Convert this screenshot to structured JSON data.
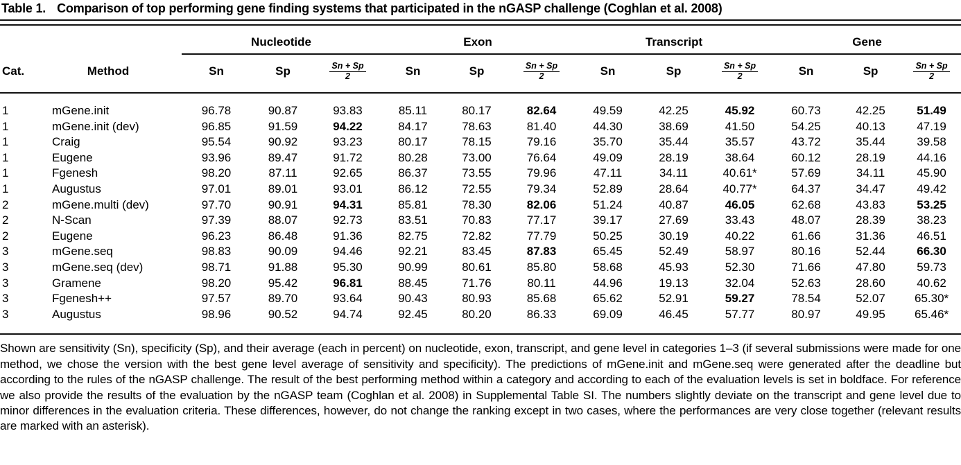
{
  "title": {
    "label": "Table 1.",
    "text": "Comparison of top performing gene finding systems that participated in the nGASP challenge (Coghlan et al. 2008)"
  },
  "table": {
    "col_cat": "Cat.",
    "col_method": "Method",
    "groups": [
      "Nucleotide",
      "Exon",
      "Transcript",
      "Gene"
    ],
    "sub_sn": "Sn",
    "sub_sp": "Sp",
    "frac_numerator": "Sn + Sp",
    "frac_denominator": "2",
    "rows": [
      {
        "cat": "1",
        "method": "mGene.init",
        "values": [
          "96.78",
          "90.87",
          "93.83",
          "85.11",
          "80.17",
          "82.64",
          "49.59",
          "42.25",
          "45.92",
          "60.73",
          "42.25",
          "51.49"
        ],
        "bold": [
          5,
          8,
          11
        ]
      },
      {
        "cat": "1",
        "method": "mGene.init (dev)",
        "values": [
          "96.85",
          "91.59",
          "94.22",
          "84.17",
          "78.63",
          "81.40",
          "44.30",
          "38.69",
          "41.50",
          "54.25",
          "40.13",
          "47.19"
        ],
        "bold": [
          2
        ]
      },
      {
        "cat": "1",
        "method": "Craig",
        "values": [
          "95.54",
          "90.92",
          "93.23",
          "80.17",
          "78.15",
          "79.16",
          "35.70",
          "35.44",
          "35.57",
          "43.72",
          "35.44",
          "39.58"
        ],
        "bold": []
      },
      {
        "cat": "1",
        "method": "Eugene",
        "values": [
          "93.96",
          "89.47",
          "91.72",
          "80.28",
          "73.00",
          "76.64",
          "49.09",
          "28.19",
          "38.64",
          "60.12",
          "28.19",
          "44.16"
        ],
        "bold": []
      },
      {
        "cat": "1",
        "method": "Fgenesh",
        "values": [
          "98.20",
          "87.11",
          "92.65",
          "86.37",
          "73.55",
          "79.96",
          "47.11",
          "34.11",
          "40.61*",
          "57.69",
          "34.11",
          "45.90"
        ],
        "bold": []
      },
      {
        "cat": "1",
        "method": "Augustus",
        "values": [
          "97.01",
          "89.01",
          "93.01",
          "86.12",
          "72.55",
          "79.34",
          "52.89",
          "28.64",
          "40.77*",
          "64.37",
          "34.47",
          "49.42"
        ],
        "bold": []
      },
      {
        "cat": "2",
        "method": "mGene.multi (dev)",
        "values": [
          "97.70",
          "90.91",
          "94.31",
          "85.81",
          "78.30",
          "82.06",
          "51.24",
          "40.87",
          "46.05",
          "62.68",
          "43.83",
          "53.25"
        ],
        "bold": [
          2,
          5,
          8,
          11
        ]
      },
      {
        "cat": "2",
        "method": "N-Scan",
        "values": [
          "97.39",
          "88.07",
          "92.73",
          "83.51",
          "70.83",
          "77.17",
          "39.17",
          "27.69",
          "33.43",
          "48.07",
          "28.39",
          "38.23"
        ],
        "bold": []
      },
      {
        "cat": "2",
        "method": "Eugene",
        "values": [
          "96.23",
          "86.48",
          "91.36",
          "82.75",
          "72.82",
          "77.79",
          "50.25",
          "30.19",
          "40.22",
          "61.66",
          "31.36",
          "46.51"
        ],
        "bold": []
      },
      {
        "cat": "3",
        "method": "mGene.seq",
        "values": [
          "98.83",
          "90.09",
          "94.46",
          "92.21",
          "83.45",
          "87.83",
          "65.45",
          "52.49",
          "58.97",
          "80.16",
          "52.44",
          "66.30"
        ],
        "bold": [
          5,
          11
        ]
      },
      {
        "cat": "3",
        "method": "mGene.seq (dev)",
        "values": [
          "98.71",
          "91.88",
          "95.30",
          "90.99",
          "80.61",
          "85.80",
          "58.68",
          "45.93",
          "52.30",
          "71.66",
          "47.80",
          "59.73"
        ],
        "bold": []
      },
      {
        "cat": "3",
        "method": "Gramene",
        "values": [
          "98.20",
          "95.42",
          "96.81",
          "88.45",
          "71.76",
          "80.11",
          "44.96",
          "19.13",
          "32.04",
          "52.63",
          "28.60",
          "40.62"
        ],
        "bold": [
          2
        ]
      },
      {
        "cat": "3",
        "method": "Fgenesh++",
        "values": [
          "97.57",
          "89.70",
          "93.64",
          "90.43",
          "80.93",
          "85.68",
          "65.62",
          "52.91",
          "59.27",
          "78.54",
          "52.07",
          "65.30*"
        ],
        "bold": [
          8
        ]
      },
      {
        "cat": "3",
        "method": "Augustus",
        "values": [
          "98.96",
          "90.52",
          "94.74",
          "92.45",
          "80.20",
          "86.33",
          "69.09",
          "46.45",
          "57.77",
          "80.97",
          "49.95",
          "65.46*"
        ],
        "bold": []
      }
    ]
  },
  "footnote": "Shown are sensitivity (Sn), specificity (Sp), and their average (each in percent) on nucleotide, exon, transcript, and gene level in categories 1–3 (if several submissions were made for one method, we chose the version with the best gene level average of sensitivity and specificity). The predictions of mGene.init and mGene.seq were generated after the deadline but according to the rules of the nGASP challenge. The result of the best performing method within a category and according to each of the evaluation levels is set in boldface. For reference we also provide the results of the evaluation by the nGASP team (Coghlan et al. 2008) in Supplemental Table SI. The numbers slightly deviate on the transcript and gene level due to minor differences in the evaluation criteria. These differences, however, do not change the ranking except in two cases, where the performances are very close together (relevant results are marked with an asterisk)."
}
